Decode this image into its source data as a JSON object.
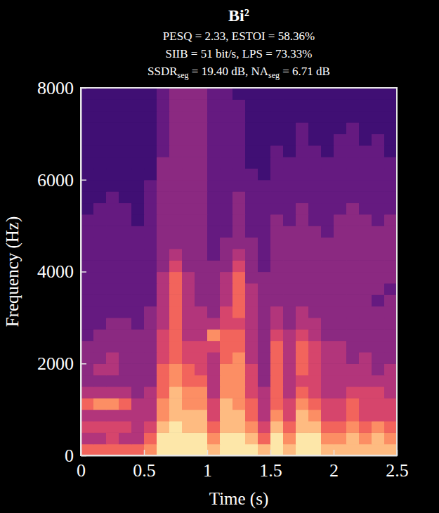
{
  "chart_data": {
    "type": "heatmap",
    "title": "Bi²",
    "subtitle": [
      [
        "PESQ = 2.33, ESTOI = 58.36%"
      ],
      [
        "SIIB = 51 bit/s, LPS = 73.33%"
      ],
      [
        "SSDR",
        {
          "sub": "seg"
        },
        " = 19.40 dB, NA",
        {
          "sub": "seg"
        },
        " = 6.71 dB"
      ]
    ],
    "x_label": "Time (s)",
    "y_label": "Frequency (Hz)",
    "xlim": [
      0,
      2.5
    ],
    "xticks": [
      0,
      0.5,
      1,
      1.5,
      2,
      2.5
    ],
    "ylim": [
      0,
      8000
    ],
    "yticks": [
      0,
      2000,
      4000,
      6000,
      8000
    ],
    "time_edges": [
      0,
      0.1,
      0.2,
      0.3,
      0.4,
      0.5,
      0.6,
      0.7,
      0.8,
      0.9,
      1,
      1.1,
      1.2,
      1.3,
      1.4,
      1.5,
      1.6,
      1.7,
      1.8,
      1.9,
      2,
      2.1,
      2.2,
      2.3,
      2.4,
      2.5
    ],
    "freq_edges": [
      0,
      250,
      500,
      750,
      1000,
      1250,
      1500,
      1750,
      2000,
      2250,
      2500,
      2750,
      3000,
      3250,
      3500,
      3750,
      4000,
      4250,
      4500,
      4750,
      5000,
      5250,
      5500,
      5750,
      6000,
      6250,
      6500,
      6750,
      7000,
      7250,
      7500,
      7750,
      8000
    ],
    "clim": [
      0,
      9
    ],
    "cells": [
      [
        6,
        6,
        6,
        6,
        6,
        7,
        9,
        9,
        9,
        9,
        8,
        9,
        9,
        9,
        8,
        9,
        8,
        9,
        9,
        8,
        8,
        8,
        8,
        8,
        8
      ],
      [
        4,
        4,
        5,
        4,
        4,
        6,
        9,
        9,
        9,
        9,
        7,
        9,
        9,
        8,
        6,
        9,
        7,
        9,
        9,
        7,
        7,
        8,
        7,
        8,
        7
      ],
      [
        5,
        5,
        5,
        5,
        4,
        5,
        8,
        9,
        8,
        8,
        6,
        8,
        8,
        7,
        5,
        8,
        6,
        8,
        8,
        6,
        6,
        7,
        6,
        7,
        6
      ],
      [
        4,
        4,
        4,
        4,
        4,
        4,
        7,
        8,
        8,
        8,
        5,
        8,
        8,
        6,
        4,
        7,
        5,
        8,
        7,
        5,
        5,
        6,
        5,
        5,
        5
      ],
      [
        6,
        7,
        7,
        6,
        4,
        4,
        7,
        8,
        7,
        7,
        5,
        8,
        7,
        6,
        4,
        6,
        5,
        7,
        6,
        5,
        5,
        6,
        5,
        5,
        5
      ],
      [
        4,
        4,
        4,
        4,
        3,
        4,
        6,
        8,
        7,
        7,
        4,
        7,
        7,
        5,
        4,
        6,
        4,
        6,
        5,
        4,
        4,
        5,
        5,
        5,
        4
      ],
      [
        3,
        3,
        3,
        3,
        3,
        3,
        6,
        7,
        6,
        6,
        4,
        7,
        7,
        5,
        3,
        6,
        4,
        5,
        5,
        4,
        4,
        4,
        4,
        4,
        4
      ],
      [
        3,
        4,
        4,
        3,
        3,
        3,
        6,
        7,
        6,
        5,
        4,
        7,
        7,
        5,
        3,
        6,
        4,
        6,
        5,
        4,
        4,
        4,
        4,
        3,
        4
      ],
      [
        3,
        3,
        4,
        3,
        3,
        3,
        5,
        6,
        5,
        5,
        4,
        6,
        7,
        4,
        3,
        6,
        4,
        6,
        5,
        4,
        4,
        3,
        4,
        3,
        3
      ],
      [
        3,
        3,
        3,
        3,
        3,
        3,
        5,
        6,
        5,
        5,
        5,
        6,
        6,
        4,
        3,
        6,
        4,
        6,
        5,
        4,
        4,
        3,
        3,
        3,
        3
      ],
      [
        2,
        3,
        3,
        3,
        3,
        3,
        5,
        6,
        4,
        4,
        7,
        6,
        6,
        4,
        3,
        5,
        4,
        5,
        4,
        3,
        3,
        3,
        3,
        3,
        3
      ],
      [
        2,
        2,
        3,
        3,
        2,
        3,
        4,
        6,
        4,
        4,
        4,
        5,
        5,
        4,
        3,
        4,
        3,
        4,
        4,
        3,
        3,
        3,
        3,
        3,
        3
      ],
      [
        2,
        2,
        2,
        2,
        2,
        3,
        4,
        6,
        4,
        4,
        3,
        5,
        6,
        4,
        3,
        4,
        3,
        4,
        3,
        3,
        3,
        3,
        3,
        3,
        3
      ],
      [
        2,
        2,
        2,
        2,
        2,
        2,
        4,
        6,
        4,
        3,
        3,
        4,
        6,
        4,
        3,
        3,
        3,
        3,
        3,
        3,
        3,
        3,
        3,
        2,
        3
      ],
      [
        2,
        2,
        2,
        2,
        2,
        2,
        4,
        6,
        4,
        3,
        3,
        4,
        6,
        4,
        3,
        3,
        3,
        3,
        3,
        3,
        3,
        3,
        3,
        3,
        2
      ],
      [
        2,
        2,
        2,
        2,
        2,
        2,
        4,
        6,
        4,
        3,
        3,
        4,
        6,
        3,
        3,
        3,
        3,
        3,
        3,
        3,
        3,
        3,
        3,
        3,
        3
      ],
      [
        2,
        2,
        2,
        2,
        2,
        2,
        3,
        5,
        3,
        3,
        3,
        3,
        5,
        3,
        2,
        3,
        3,
        3,
        3,
        3,
        3,
        3,
        3,
        3,
        3
      ],
      [
        2,
        2,
        2,
        2,
        2,
        2,
        3,
        4,
        3,
        3,
        2,
        3,
        4,
        3,
        2,
        3,
        3,
        3,
        3,
        3,
        3,
        3,
        3,
        3,
        3
      ],
      [
        2,
        2,
        2,
        2,
        2,
        2,
        3,
        3,
        3,
        3,
        2,
        3,
        3,
        3,
        2,
        3,
        3,
        3,
        3,
        3,
        3,
        3,
        3,
        3,
        3
      ],
      [
        2,
        2,
        2,
        2,
        2,
        2,
        3,
        3,
        3,
        3,
        2,
        2,
        3,
        2,
        2,
        3,
        3,
        3,
        3,
        2,
        3,
        3,
        3,
        3,
        3
      ],
      [
        2,
        2,
        2,
        2,
        1,
        2,
        3,
        3,
        3,
        3,
        2,
        2,
        3,
        2,
        2,
        3,
        2,
        3,
        2,
        2,
        3,
        3,
        3,
        2,
        3
      ],
      [
        1,
        2,
        2,
        2,
        1,
        2,
        3,
        3,
        3,
        3,
        2,
        2,
        3,
        2,
        2,
        2,
        2,
        3,
        2,
        2,
        2,
        3,
        2,
        2,
        2
      ],
      [
        1,
        1,
        2,
        1,
        1,
        2,
        3,
        3,
        3,
        3,
        2,
        2,
        3,
        2,
        2,
        2,
        2,
        2,
        2,
        2,
        2,
        2,
        2,
        2,
        2
      ],
      [
        1,
        1,
        1,
        1,
        1,
        2,
        3,
        3,
        3,
        3,
        2,
        2,
        2,
        2,
        2,
        2,
        2,
        2,
        2,
        2,
        2,
        2,
        2,
        2,
        2
      ],
      [
        1,
        1,
        1,
        1,
        1,
        1,
        3,
        3,
        3,
        3,
        2,
        2,
        2,
        2,
        1,
        2,
        2,
        2,
        2,
        2,
        2,
        2,
        2,
        2,
        2
      ],
      [
        1,
        1,
        1,
        1,
        1,
        1,
        3,
        3,
        3,
        3,
        2,
        2,
        2,
        1,
        1,
        2,
        2,
        2,
        2,
        2,
        2,
        2,
        2,
        2,
        2
      ],
      [
        1,
        1,
        1,
        1,
        1,
        1,
        2,
        3,
        3,
        3,
        2,
        2,
        2,
        1,
        1,
        2,
        1,
        2,
        2,
        1,
        2,
        2,
        2,
        2,
        1
      ],
      [
        1,
        1,
        1,
        1,
        1,
        1,
        2,
        3,
        3,
        3,
        2,
        2,
        2,
        1,
        1,
        1,
        1,
        2,
        1,
        1,
        2,
        2,
        1,
        2,
        1
      ],
      [
        1,
        1,
        1,
        1,
        1,
        1,
        2,
        3,
        3,
        3,
        2,
        2,
        2,
        1,
        1,
        1,
        1,
        2,
        1,
        1,
        1,
        2,
        1,
        1,
        1
      ],
      [
        1,
        1,
        1,
        1,
        1,
        1,
        2,
        3,
        3,
        3,
        2,
        2,
        2,
        1,
        1,
        1,
        1,
        1,
        1,
        1,
        1,
        1,
        1,
        1,
        1
      ],
      [
        1,
        1,
        1,
        1,
        1,
        1,
        2,
        3,
        3,
        3,
        2,
        2,
        2,
        1,
        1,
        1,
        1,
        1,
        1,
        1,
        1,
        1,
        1,
        1,
        1
      ],
      [
        1,
        1,
        1,
        1,
        1,
        1,
        2,
        3,
        3,
        3,
        2,
        2,
        1,
        1,
        1,
        1,
        1,
        1,
        1,
        1,
        1,
        1,
        1,
        1,
        1
      ]
    ]
  }
}
